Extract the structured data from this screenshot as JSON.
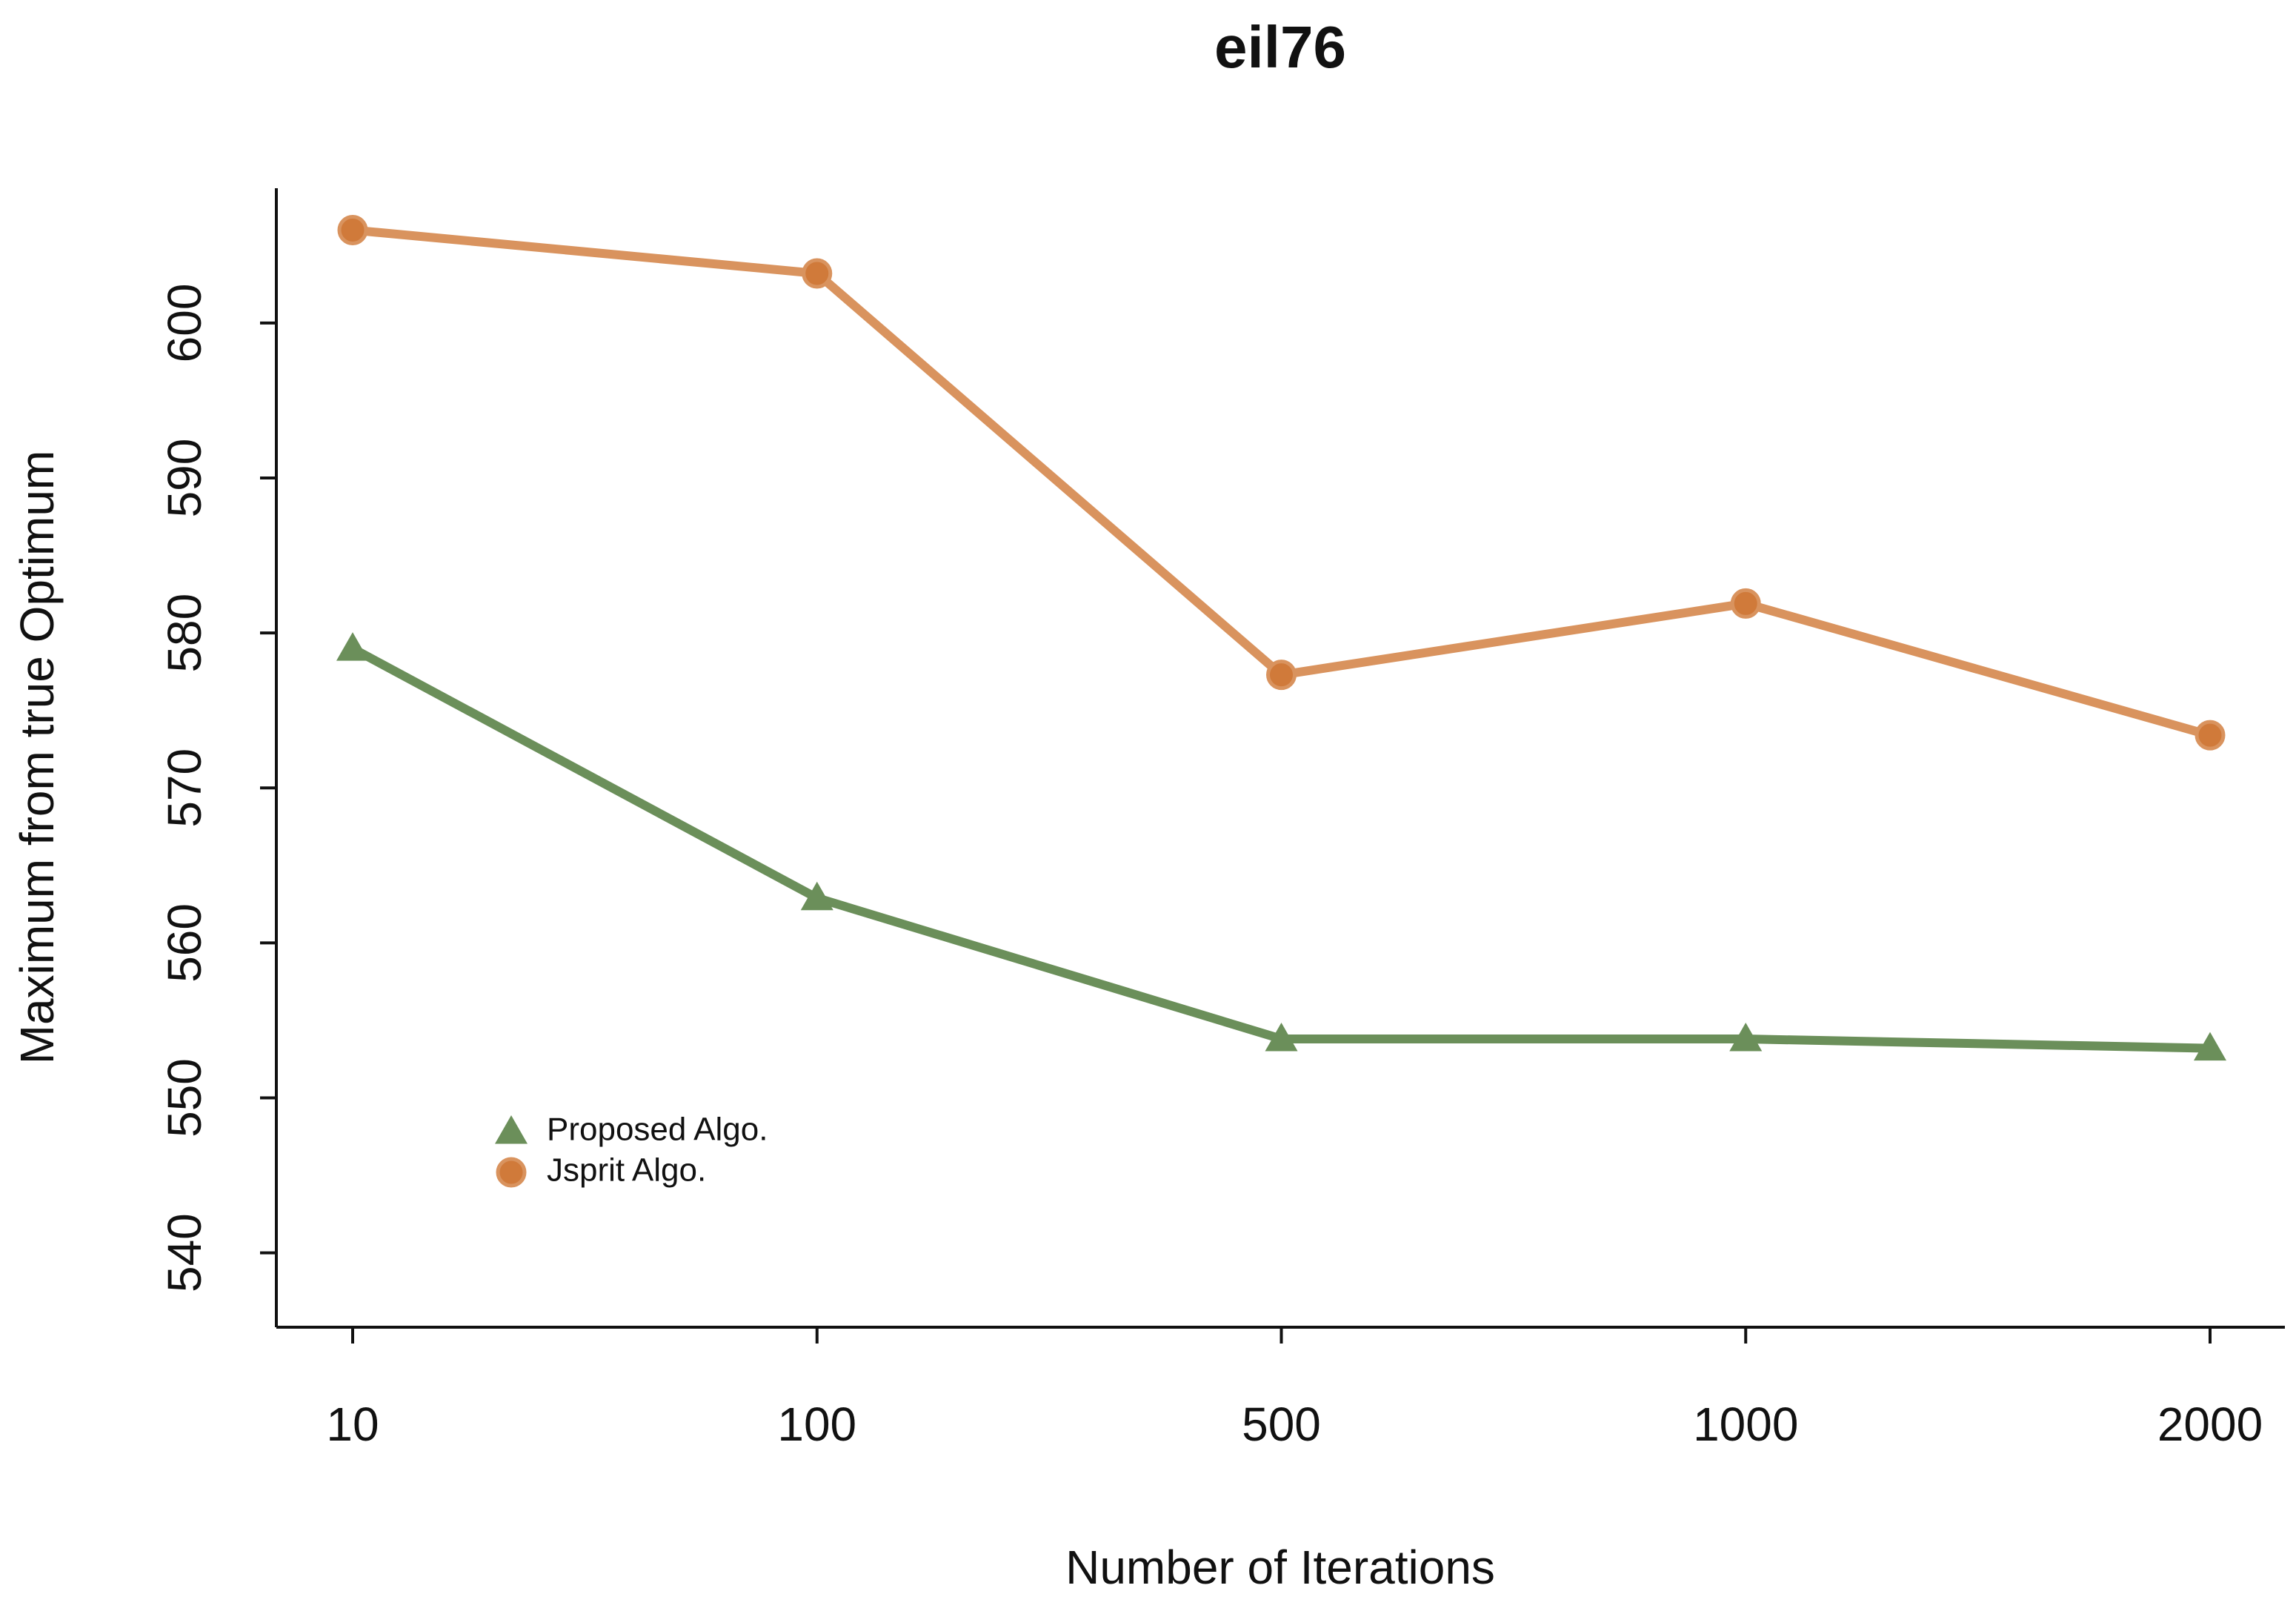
{
  "chart_data": {
    "type": "line",
    "title": "eil76",
    "x_label": "Number of Iterations",
    "y_label": "Maximum from true Optimum",
    "categories": [
      "10",
      "100",
      "500",
      "1000",
      "2000"
    ],
    "series": [
      {
        "name": "Proposed Algo.",
        "color": "#6b8f5a",
        "marker": "triangle",
        "values": [
          579.0,
          562.9,
          553.8,
          553.8,
          553.2
        ]
      },
      {
        "name": "Jsprit Algo.",
        "color": "#d9935e",
        "marker": "circle",
        "values": [
          606.0,
          603.2,
          577.3,
          581.9,
          573.4
        ]
      }
    ],
    "ylim": [
      535.2,
      608.7
    ],
    "yticks": [
      540,
      550,
      560,
      570,
      580,
      590,
      600
    ],
    "legend": "bottom-left"
  }
}
